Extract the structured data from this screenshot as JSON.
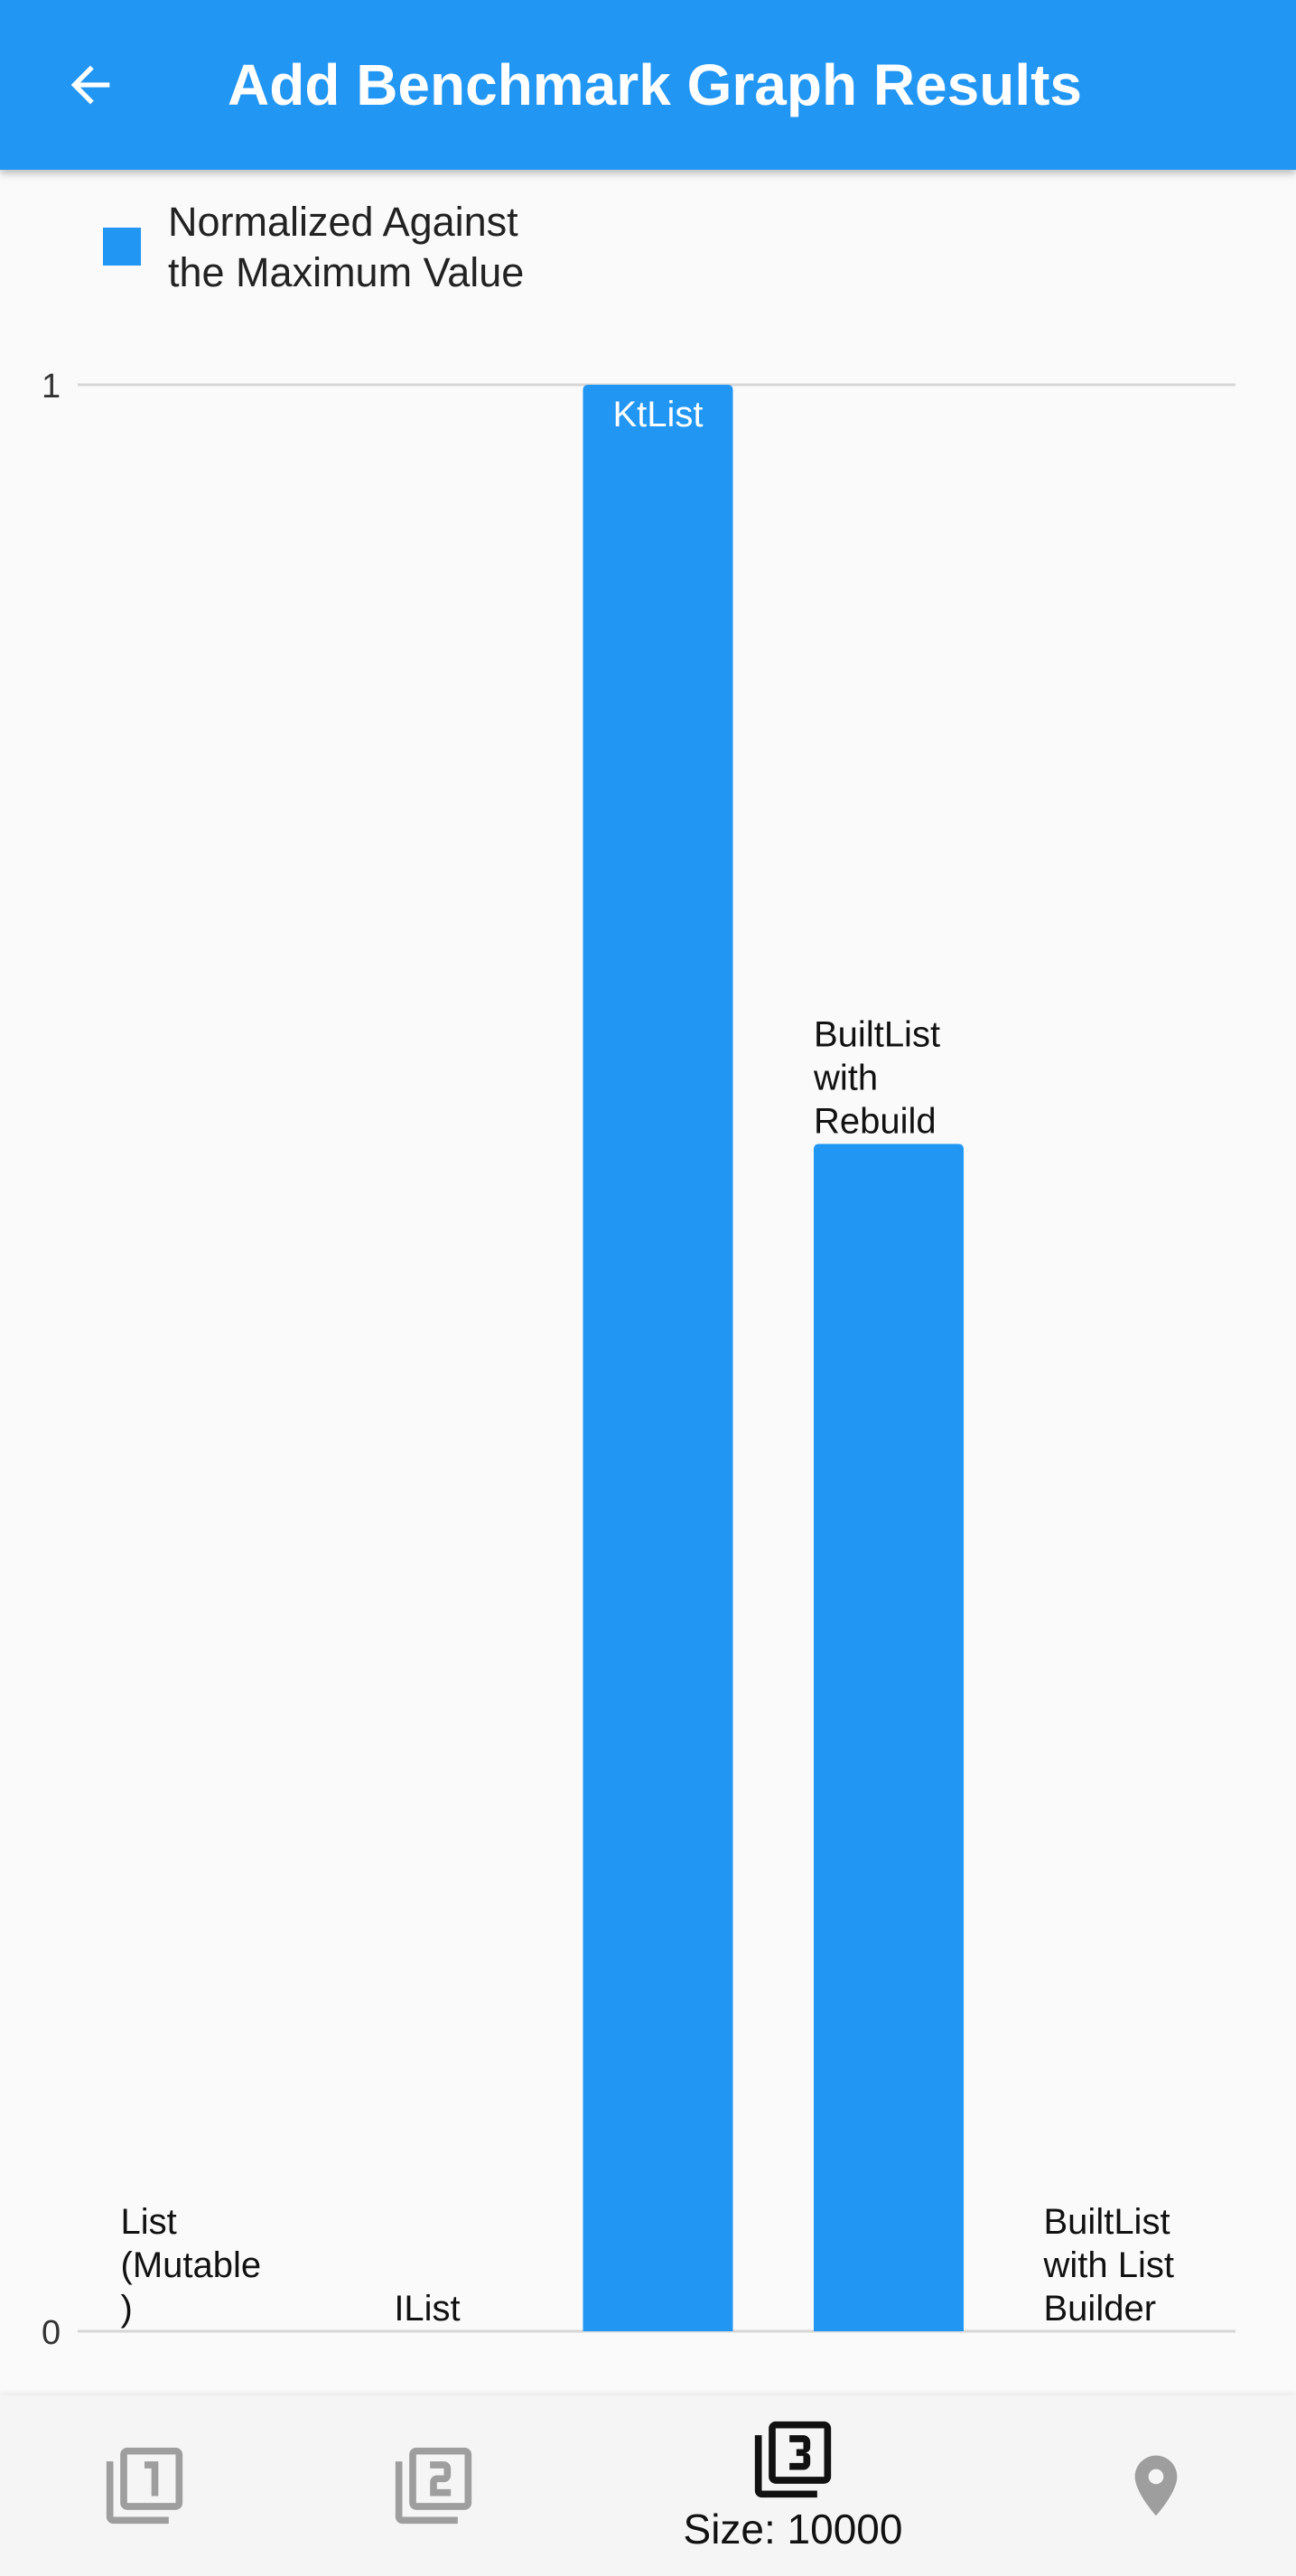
{
  "appbar": {
    "title": "Add Benchmark Graph Results",
    "back_icon": "arrow-back-icon"
  },
  "legend": {
    "label_line1": "Normalized Against",
    "label_line2": "the Maximum Value",
    "color": "#2196f3"
  },
  "chart_data": {
    "type": "bar",
    "categories": [
      "List (Mutable)",
      "IList",
      "KtList",
      "BuiltList with Rebuild",
      "BuiltList with List Builder"
    ],
    "category_label_lines": [
      [
        "List",
        "(Mutable",
        ")"
      ],
      [
        "IList"
      ],
      [
        "KtList"
      ],
      [
        "BuiltList",
        "with",
        "Rebuild"
      ],
      [
        "BuiltList",
        "with List",
        "Builder"
      ]
    ],
    "series": [
      {
        "name": "Normalized Against the Maximum Value",
        "values": [
          0,
          0,
          1,
          0.61,
          0
        ]
      }
    ],
    "yticks": [
      "0",
      "1"
    ],
    "ylim": [
      0,
      1
    ],
    "grid": true,
    "legend_position": "top-left",
    "bar_color": "#2196f3"
  },
  "bottom_nav": {
    "items": [
      {
        "icon": "filter-1-icon",
        "label": ""
      },
      {
        "icon": "filter-2-icon",
        "label": ""
      },
      {
        "icon": "filter-3-icon",
        "label": "Size: 10000",
        "active": true
      },
      {
        "icon": "location-pin-icon",
        "label": ""
      }
    ]
  },
  "colors": {
    "primary": "#2196f3",
    "background": "#fafafa",
    "inactive_icon": "#9e9e9e",
    "active_icon": "#111111"
  }
}
